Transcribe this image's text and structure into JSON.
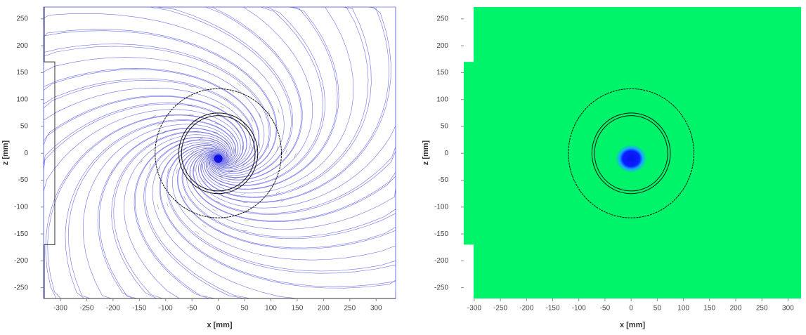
{
  "chart_data": [
    {
      "type": "streamline",
      "xlabel": "x [mm]",
      "ylabel": "z [mm]",
      "xlim": [
        -332,
        337
      ],
      "ylim": [
        -270,
        272
      ],
      "xticks": [
        -300,
        -250,
        -200,
        -150,
        -100,
        -50,
        0,
        50,
        100,
        150,
        200,
        250,
        300
      ],
      "yticks": [
        -250,
        -200,
        -150,
        -100,
        -50,
        0,
        50,
        100,
        150,
        200,
        250
      ],
      "rings": [
        120,
        75,
        70
      ],
      "core": [
        0,
        -10
      ],
      "color": "#4a4ae0"
    },
    {
      "type": "contour",
      "xlabel": "x [mm]",
      "ylabel": "z [mm]",
      "xlim": [
        -320,
        325
      ],
      "ylim": [
        -270,
        272
      ],
      "xticks": [
        -300,
        -250,
        -200,
        -150,
        -100,
        -50,
        0,
        50,
        100,
        150,
        200,
        250,
        300
      ],
      "yticks": [
        -250,
        -200,
        -150,
        -100,
        -50,
        0,
        50,
        100,
        150,
        200,
        250
      ],
      "rings": [
        120,
        75,
        70
      ],
      "core": [
        0,
        -10
      ],
      "color": "#00f46a"
    }
  ]
}
